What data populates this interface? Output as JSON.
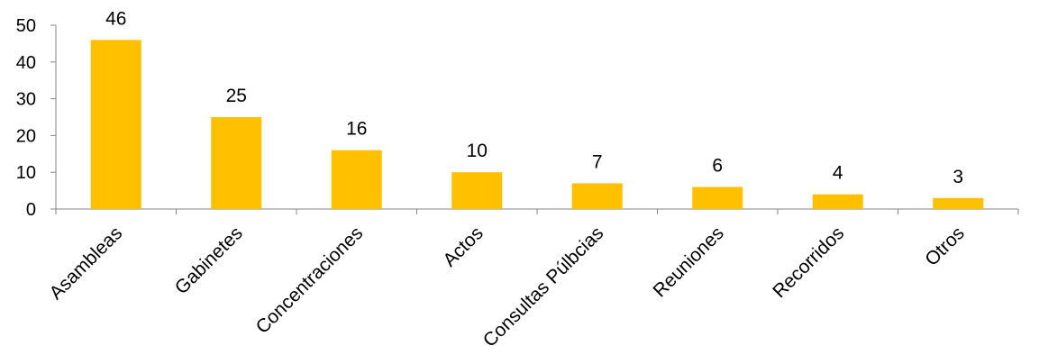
{
  "chart_data": {
    "type": "bar",
    "title": "",
    "xlabel": "",
    "ylabel": "",
    "categories": [
      "Asambleas",
      "Gabinetes",
      "Concentraciones",
      "Actos",
      "Consultas Púlbcias",
      "Reuniones",
      "Recorridos",
      "Otros"
    ],
    "values": [
      46,
      25,
      16,
      10,
      7,
      6,
      4,
      3
    ],
    "data_labels": [
      "46",
      "25",
      "16",
      "10",
      "7",
      "6",
      "4",
      "3"
    ],
    "ylim": [
      0,
      50
    ],
    "yticks": [
      0,
      10,
      20,
      30,
      40,
      50
    ],
    "ytick_labels": [
      "0",
      "10",
      "20",
      "30",
      "40",
      "50"
    ],
    "grid": false,
    "legend": "none",
    "category_label_rotation": -45,
    "colors": {
      "bar": "#FFC000",
      "axis": "#868686",
      "text": "#000000"
    }
  }
}
